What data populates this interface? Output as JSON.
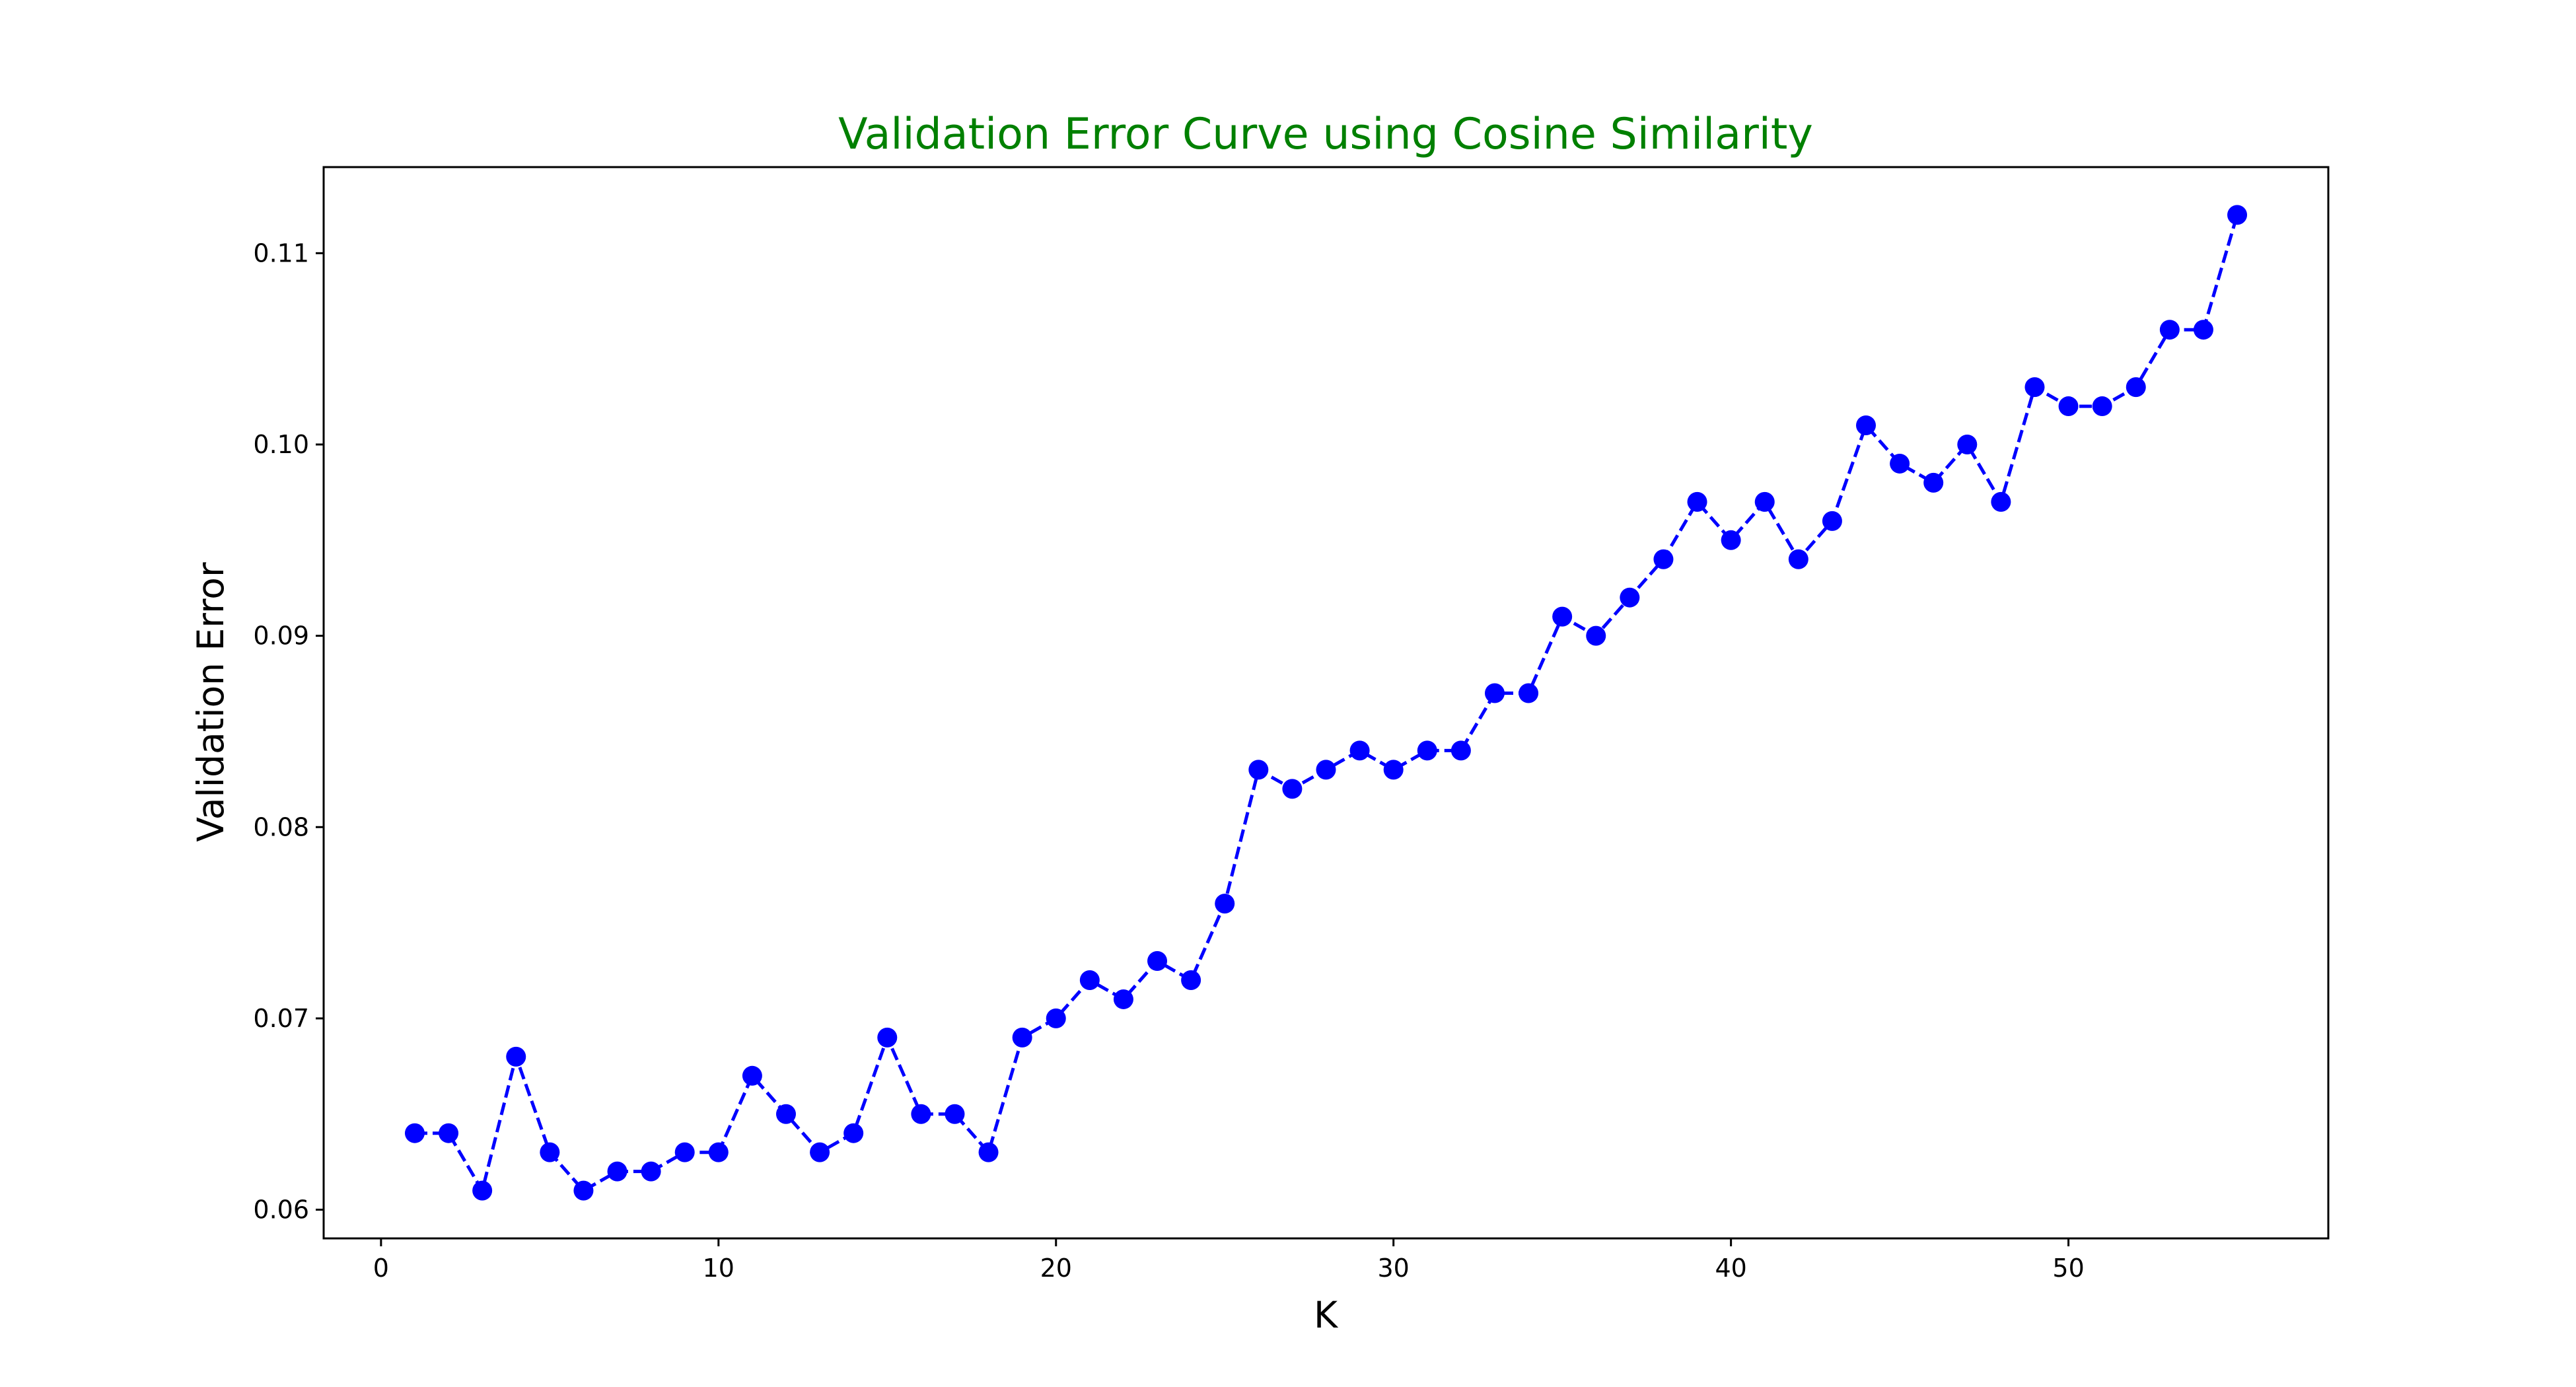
{
  "chart_data": {
    "type": "line",
    "title": "Validation Error Curve using Cosine Similarity",
    "title_color": "#008000",
    "xlabel": "K",
    "ylabel": "Validation Error",
    "xlim": [
      -1.7,
      57.7
    ],
    "ylim": [
      0.0585,
      0.1145
    ],
    "xticks": [
      0,
      10,
      20,
      30,
      40,
      50
    ],
    "yticks": [
      0.06,
      0.07,
      0.08,
      0.09,
      0.1,
      0.11
    ],
    "ytick_labels": [
      "0.06",
      "0.07",
      "0.08",
      "0.09",
      "0.10",
      "0.11"
    ],
    "grid": false,
    "series": [
      {
        "color": "#0000ff",
        "line_style": "dashed",
        "marker": "circle",
        "x": [
          1,
          2,
          3,
          4,
          5,
          6,
          7,
          8,
          9,
          10,
          11,
          12,
          13,
          14,
          15,
          16,
          17,
          18,
          19,
          20,
          21,
          22,
          23,
          24,
          25,
          26,
          27,
          28,
          29,
          30,
          31,
          32,
          33,
          34,
          35,
          36,
          37,
          38,
          39,
          40,
          41,
          42,
          43,
          44,
          45,
          46,
          47,
          48,
          49,
          50,
          51,
          52,
          53,
          54,
          55
        ],
        "y": [
          0.064,
          0.064,
          0.061,
          0.068,
          0.063,
          0.061,
          0.062,
          0.062,
          0.063,
          0.063,
          0.067,
          0.065,
          0.063,
          0.064,
          0.069,
          0.065,
          0.065,
          0.063,
          0.069,
          0.07,
          0.072,
          0.071,
          0.073,
          0.072,
          0.076,
          0.083,
          0.082,
          0.083,
          0.084,
          0.083,
          0.084,
          0.084,
          0.087,
          0.087,
          0.091,
          0.09,
          0.092,
          0.094,
          0.097,
          0.095,
          0.097,
          0.094,
          0.096,
          0.101,
          0.099,
          0.098,
          0.1,
          0.097,
          0.103,
          0.102,
          0.102,
          0.103,
          0.106,
          0.106,
          0.112
        ]
      }
    ]
  }
}
